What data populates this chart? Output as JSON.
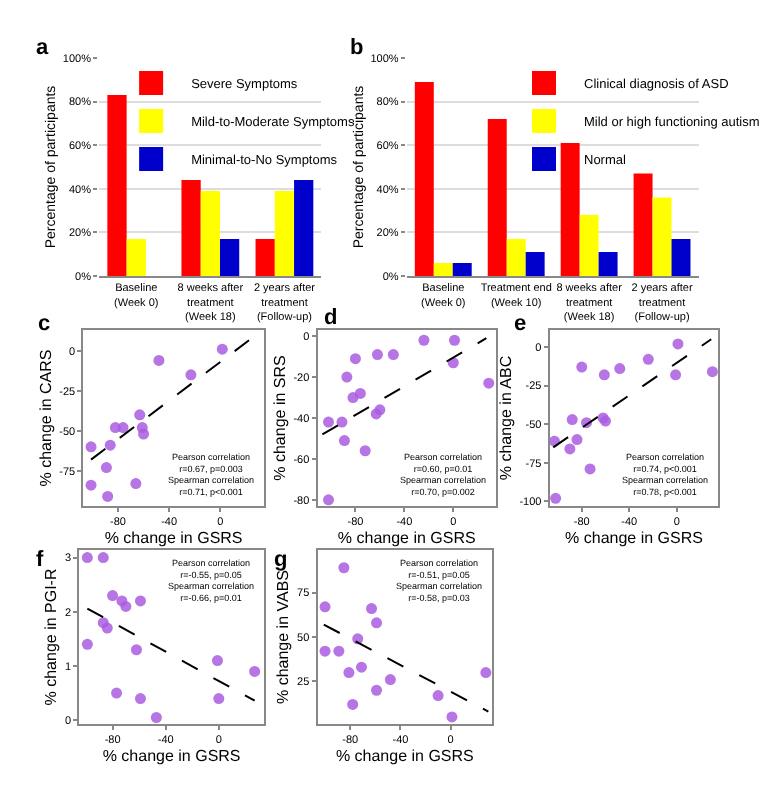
{
  "chart_data": [
    {
      "type": "bar",
      "title": "a",
      "ylabel": "Percentage of participants",
      "categories": [
        "Baseline\n(Week 0)",
        "8 weeks after\ntreatment\n(Week 18)",
        "2 years after\ntreatment\n(Follow-up)"
      ],
      "series": [
        {
          "name": "Severe Symptoms",
          "color": "#ff0000",
          "values": [
            83,
            44,
            17
          ]
        },
        {
          "name": "Mild-to-Moderate Symptoms",
          "color": "#ffff00",
          "values": [
            17,
            39,
            39
          ]
        },
        {
          "name": "Minimal-to-No Symptoms",
          "color": "#0000cc",
          "values": [
            0,
            17,
            44
          ]
        }
      ],
      "ylim": [
        0,
        100
      ],
      "yticks": [
        {
          "value": 0,
          "label": "0%"
        },
        {
          "value": 20,
          "label": "20%"
        },
        {
          "value": 40,
          "label": "40%"
        },
        {
          "value": 60,
          "label": "60%"
        },
        {
          "value": 80,
          "label": "80%"
        },
        {
          "value": 100,
          "label": "100%"
        }
      ],
      "grid": "y",
      "legend": "top right"
    },
    {
      "type": "bar",
      "title": "b",
      "ylabel": "Percentage of participants",
      "categories": [
        "Baseline\n(Week 0)",
        "Treatment end\n(Week 10)",
        "8 weeks after\ntreatment\n(Week 18)",
        "2 years after\ntreatment\n(Follow-up)"
      ],
      "series": [
        {
          "name": "Clinical diagnosis of ASD",
          "color": "#ff0000",
          "values": [
            89,
            72,
            61,
            47
          ]
        },
        {
          "name": "Mild or high functioning autism",
          "color": "#ffff00",
          "values": [
            6,
            17,
            28,
            36
          ]
        },
        {
          "name": "Normal",
          "color": "#0000cc",
          "values": [
            6,
            11,
            11,
            17
          ]
        }
      ],
      "ylim": [
        0,
        100
      ],
      "yticks": [
        {
          "value": 0,
          "label": "0%"
        },
        {
          "value": 20,
          "label": "20%"
        },
        {
          "value": 40,
          "label": "40%"
        },
        {
          "value": 60,
          "label": "60%"
        },
        {
          "value": 80,
          "label": "80%"
        },
        {
          "value": 100,
          "label": "100%"
        }
      ],
      "grid": "y",
      "legend": "top right"
    },
    {
      "type": "scatter",
      "title": "c",
      "xlabel": "% change in GSRS",
      "ylabel": "% change in CARS",
      "marker": "circle",
      "series": [
        {
          "color": "#a95ce0",
          "x": [
            1.5,
            -48,
            -23,
            -76,
            -82,
            -61,
            -60,
            -101,
            -86,
            -89,
            -101,
            -88,
            -66,
            -63
          ],
          "values": [
            1,
            -6,
            -15,
            -48,
            -48,
            -48,
            -52,
            -60,
            -59,
            -73,
            -84,
            -91,
            -83,
            -40
          ]
        },
        {
          "type": "line",
          "color": "#000000",
          "marker": "none",
          "line_style": "dashed",
          "x": [
            -101,
            28
          ],
          "values": [
            -68,
            10
          ]
        }
      ],
      "xlim": [
        -107,
        34
      ],
      "xticks": [
        -80,
        -40,
        0
      ],
      "ylim": [
        -97,
        13
      ],
      "yticks": [
        0,
        -25,
        -50,
        -75
      ],
      "annotations": [
        "Pearson correlation\nr=0.67, p=0.003\nSpearman correlation\nr=0.71, p<0.001"
      ]
    },
    {
      "type": "scatter",
      "title": "d",
      "xlabel": "% change in GSRS",
      "ylabel": "% change in SRS",
      "marker": "circle",
      "series": [
        {
          "color": "#a95ce0",
          "x": [
            -80,
            -62,
            -49,
            -87,
            -82,
            -76,
            -60,
            -63,
            -102,
            -91,
            -89,
            -72,
            -102,
            -24,
            1,
            0,
            29
          ],
          "values": [
            -11,
            -9,
            -9,
            -20,
            -30,
            -28,
            -36,
            -38,
            -42,
            -42,
            -51,
            -56,
            -80,
            -2,
            -2,
            -13,
            -23
          ]
        },
        {
          "type": "line",
          "color": "#000000",
          "marker": "none",
          "line_style": "dashed",
          "x": [
            -107,
            27
          ],
          "values": [
            -48,
            -1
          ]
        }
      ],
      "xlim": [
        -111,
        35
      ],
      "xticks": [
        -80,
        -40,
        0
      ],
      "ylim": [
        -83,
        3
      ],
      "yticks": [
        0,
        -20,
        -40,
        -60,
        -80
      ],
      "annotations": [
        "Pearson correlation\nr=0.60, p=0.01\nSpearman correlation\nr=0.70, p=0.002"
      ]
    },
    {
      "type": "scatter",
      "title": "e",
      "xlabel": "% change in GSRS",
      "ylabel": "% change in ABC",
      "marker": "circle",
      "series": [
        {
          "color": "#a95ce0",
          "x": [
            1,
            -24,
            30,
            -1,
            -80,
            -61,
            -48,
            -88,
            -62,
            -60,
            -76,
            -84,
            -103,
            -90,
            -73,
            -102
          ],
          "values": [
            2,
            -8,
            -16,
            -18,
            -13,
            -18,
            -14,
            -47,
            -46,
            -48,
            -49,
            -60,
            -61,
            -66,
            -79,
            -98
          ]
        },
        {
          "type": "line",
          "color": "#000000",
          "marker": "none",
          "line_style": "dashed",
          "x": [
            -104,
            29
          ],
          "values": [
            -65,
            5
          ]
        }
      ],
      "xlim": [
        -107,
        35
      ],
      "xticks": [
        -80,
        -40,
        0
      ],
      "ylim": [
        -103,
        11
      ],
      "yticks": [
        0,
        -25,
        -50,
        -75,
        -100
      ],
      "annotations": [
        "Pearson correlation\nr=0.74, p<0.001\nSpearman correlation\nr=0.78, p<0.001"
      ]
    },
    {
      "type": "scatter",
      "title": "f",
      "xlabel": "% change in GSRS",
      "ylabel": "% change in PGI-R",
      "marker": "circle",
      "series": [
        {
          "color": "#a95ce0",
          "x": [
            -99,
            -87,
            -80,
            -73,
            -70,
            -59,
            -87,
            -84,
            -99,
            -62,
            -1,
            27,
            -77,
            -59,
            0,
            -47
          ],
          "values": [
            3.0,
            3.0,
            2.3,
            2.2,
            2.1,
            2.2,
            1.8,
            1.7,
            1.4,
            1.3,
            1.1,
            0.9,
            0.5,
            0.4,
            0.4,
            0.05
          ]
        },
        {
          "type": "line",
          "color": "#000000",
          "marker": "none",
          "line_style": "dashed",
          "x": [
            -99,
            27
          ],
          "values": [
            2.06,
            0.36
          ]
        }
      ],
      "xlim": [
        -105,
        34
      ],
      "xticks": [
        -80,
        -40,
        0
      ],
      "ylim": [
        -0.07,
        3.14
      ],
      "yticks": [
        0,
        1,
        2,
        3
      ],
      "annotations": [
        "Pearson correlation\nr=-0.55, p=0.05\nSpearman correlation\nr=-0.66, p=0.01"
      ]
    },
    {
      "type": "scatter",
      "title": "g",
      "xlabel": "% change in GSRS",
      "ylabel": "% change in VABS",
      "marker": "circle",
      "series": [
        {
          "color": "#a95ce0",
          "x": [
            -85,
            -100,
            -100,
            -89,
            -63,
            -59,
            -74,
            -71,
            -81,
            -78,
            -59,
            -48,
            -10,
            1,
            28
          ],
          "values": [
            89,
            67,
            42,
            42,
            66,
            58,
            49,
            33,
            30,
            12,
            20,
            26,
            17,
            5,
            30
          ]
        },
        {
          "type": "line",
          "color": "#000000",
          "marker": "none",
          "line_style": "dashed",
          "x": [
            -101,
            30
          ],
          "values": [
            57,
            8
          ]
        }
      ],
      "xlim": [
        -106,
        33
      ],
      "xticks": [
        -80,
        -40,
        0
      ],
      "ylim": [
        1,
        99
      ],
      "yticks": [
        25,
        50,
        75
      ],
      "annotations": [
        "Pearson correlation\nr=-0.51, p=0.05\nSpearman correlation\nr=-0.58, p=0.03"
      ]
    }
  ]
}
